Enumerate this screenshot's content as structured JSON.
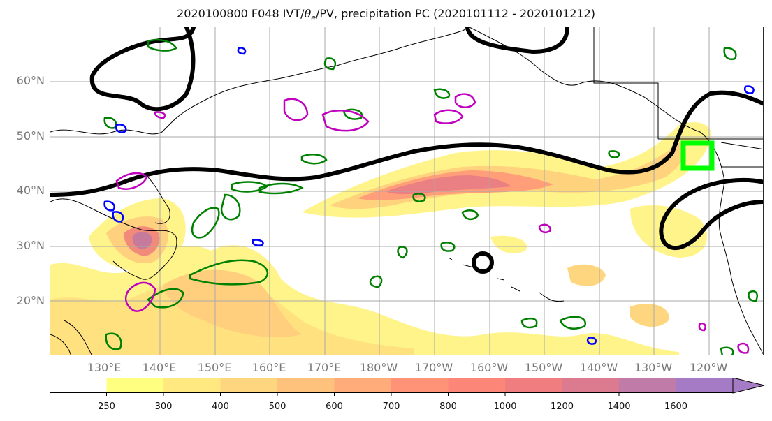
{
  "title": {
    "prefix": "2020100800 F048 IVT/",
    "theta": "θ",
    "sub": "e",
    "suffix": "/PV, precipitation PC (2020101112 - 2020101212)"
  },
  "map": {
    "lat_labels": [
      "60°N",
      "50°N",
      "40°N",
      "30°N",
      "20°N"
    ],
    "lon_labels": [
      "130°E",
      "140°E",
      "150°E",
      "160°E",
      "170°E",
      "180°W",
      "170°W",
      "160°W",
      "150°W",
      "140°W",
      "130°W",
      "120°W"
    ]
  },
  "colorbar": {
    "ticks": [
      "250",
      "300",
      "400",
      "500",
      "600",
      "700",
      "800",
      "1000",
      "1200",
      "1400",
      "1600"
    ],
    "colors": [
      "#ffffff",
      "#ffff80",
      "#ffe980",
      "#ffd680",
      "#ffc27d",
      "#ffab7a",
      "#ff9378",
      "#fc8778",
      "#f07e80",
      "#dc7a8f",
      "#c07ba9",
      "#a67bc6"
    ]
  },
  "legend_colors": {
    "theta_e": "#000000",
    "pv_positive": "#008000",
    "pv_negative": "#0000ff",
    "pv_other": "#bf00bf",
    "target_box": "#00ff00"
  }
}
